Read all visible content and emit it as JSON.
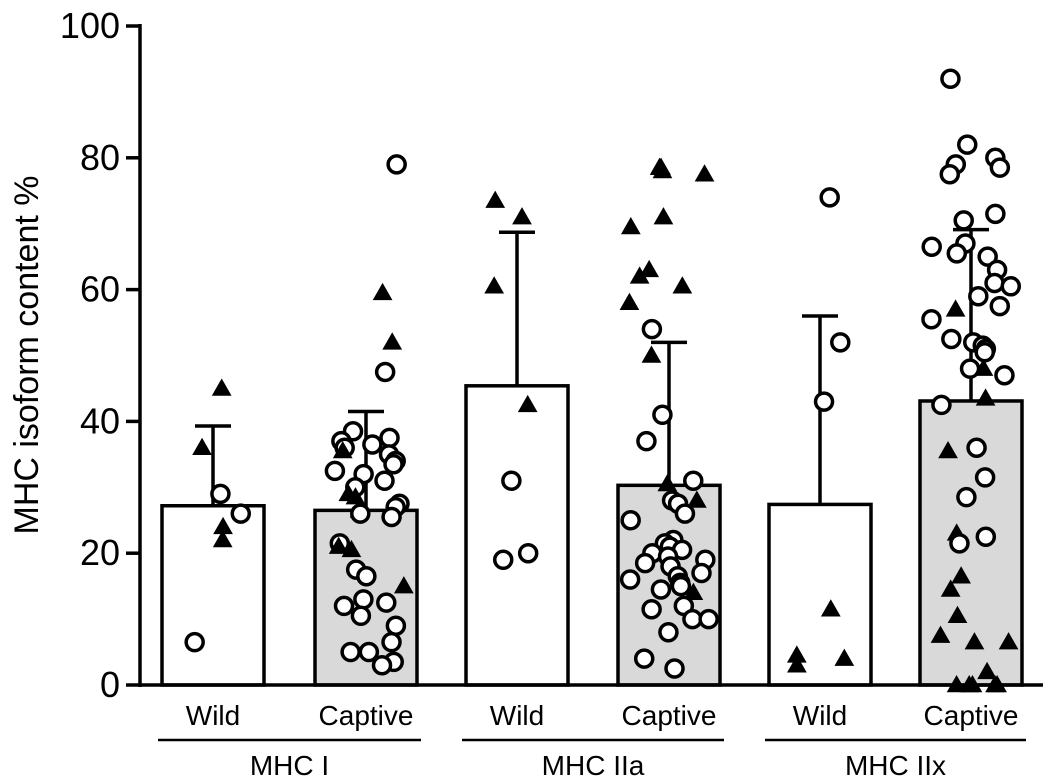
{
  "chart_data": {
    "type": "bar",
    "title": "",
    "ylabel": "MHC isoform content %",
    "xlabel": "",
    "ylim": [
      0,
      100
    ],
    "yticks": [
      0,
      20,
      40,
      60,
      80,
      100
    ],
    "grid": false,
    "error_bars": "mean + SD (upper only)",
    "groups": [
      {
        "label": "MHC I",
        "bars": [
          {
            "label": "Wild",
            "fill": "#ffffff",
            "mean": 27.2,
            "sd": 12.1,
            "points": [
              {
                "marker": "triangle",
                "y": 45
              },
              {
                "marker": "triangle",
                "y": 36
              },
              {
                "marker": "circle",
                "y": 29
              },
              {
                "marker": "circle",
                "y": 26
              },
              {
                "marker": "triangle",
                "y": 24
              },
              {
                "marker": "triangle",
                "y": 22
              },
              {
                "marker": "circle",
                "y": 6.5
              }
            ]
          },
          {
            "label": "Captive",
            "fill": "#d9d9d9",
            "mean": 26.5,
            "sd": 15.0,
            "points": [
              {
                "marker": "circle",
                "y": 79
              },
              {
                "marker": "triangle",
                "y": 59.5
              },
              {
                "marker": "triangle",
                "y": 52
              },
              {
                "marker": "circle",
                "y": 47.5
              },
              {
                "marker": "circle",
                "y": 38.5
              },
              {
                "marker": "circle",
                "y": 37.5
              },
              {
                "marker": "circle",
                "y": 37
              },
              {
                "marker": "circle",
                "y": 36.5
              },
              {
                "marker": "circle",
                "y": 36
              },
              {
                "marker": "triangle",
                "y": 35.5
              },
              {
                "marker": "circle",
                "y": 35
              },
              {
                "marker": "circle",
                "y": 34
              },
              {
                "marker": "circle",
                "y": 33.5
              },
              {
                "marker": "circle",
                "y": 32.5
              },
              {
                "marker": "circle",
                "y": 32
              },
              {
                "marker": "circle",
                "y": 31
              },
              {
                "marker": "circle",
                "y": 30
              },
              {
                "marker": "triangle",
                "y": 29
              },
              {
                "marker": "triangle",
                "y": 28.5
              },
              {
                "marker": "circle",
                "y": 27.5
              },
              {
                "marker": "circle",
                "y": 27
              },
              {
                "marker": "triangle",
                "y": 26.5
              },
              {
                "marker": "circle",
                "y": 26
              },
              {
                "marker": "circle",
                "y": 25.5
              },
              {
                "marker": "circle",
                "y": 21.5
              },
              {
                "marker": "triangle",
                "y": 21
              },
              {
                "marker": "triangle",
                "y": 20.5
              },
              {
                "marker": "circle",
                "y": 17.5
              },
              {
                "marker": "circle",
                "y": 16.5
              },
              {
                "marker": "triangle",
                "y": 15
              },
              {
                "marker": "circle",
                "y": 13
              },
              {
                "marker": "circle",
                "y": 12.5
              },
              {
                "marker": "circle",
                "y": 12
              },
              {
                "marker": "circle",
                "y": 10.5
              },
              {
                "marker": "circle",
                "y": 9
              },
              {
                "marker": "circle",
                "y": 6.5
              },
              {
                "marker": "circle",
                "y": 5
              },
              {
                "marker": "circle",
                "y": 5
              },
              {
                "marker": "circle",
                "y": 3.5
              },
              {
                "marker": "circle",
                "y": 3
              }
            ]
          }
        ]
      },
      {
        "label": "MHC IIa",
        "bars": [
          {
            "label": "Wild",
            "fill": "#ffffff",
            "mean": 45.4,
            "sd": 23.3,
            "points": [
              {
                "marker": "triangle",
                "y": 73.5
              },
              {
                "marker": "triangle",
                "y": 71
              },
              {
                "marker": "triangle",
                "y": 60.5
              },
              {
                "marker": "triangle",
                "y": 42.5
              },
              {
                "marker": "circle",
                "y": 31
              },
              {
                "marker": "circle",
                "y": 20
              },
              {
                "marker": "circle",
                "y": 19
              }
            ]
          },
          {
            "label": "Captive",
            "fill": "#d9d9d9",
            "mean": 30.3,
            "sd": 21.7,
            "points": [
              {
                "marker": "triangle",
                "y": 78.5
              },
              {
                "marker": "triangle",
                "y": 78.5
              },
              {
                "marker": "triangle",
                "y": 78
              },
              {
                "marker": "triangle",
                "y": 77.5
              },
              {
                "marker": "triangle",
                "y": 71
              },
              {
                "marker": "triangle",
                "y": 69.5
              },
              {
                "marker": "triangle",
                "y": 63
              },
              {
                "marker": "triangle",
                "y": 62
              },
              {
                "marker": "triangle",
                "y": 60.5
              },
              {
                "marker": "triangle",
                "y": 58
              },
              {
                "marker": "circle",
                "y": 54
              },
              {
                "marker": "triangle",
                "y": 50
              },
              {
                "marker": "circle",
                "y": 41
              },
              {
                "marker": "circle",
                "y": 37
              },
              {
                "marker": "circle",
                "y": 31
              },
              {
                "marker": "triangle",
                "y": 30.5
              },
              {
                "marker": "circle",
                "y": 28
              },
              {
                "marker": "triangle",
                "y": 28
              },
              {
                "marker": "circle",
                "y": 27.5
              },
              {
                "marker": "circle",
                "y": 26
              },
              {
                "marker": "circle",
                "y": 25
              },
              {
                "marker": "circle",
                "y": 22
              },
              {
                "marker": "circle",
                "y": 21.5
              },
              {
                "marker": "circle",
                "y": 21
              },
              {
                "marker": "circle",
                "y": 20.5
              },
              {
                "marker": "circle",
                "y": 20
              },
              {
                "marker": "circle",
                "y": 19.5
              },
              {
                "marker": "circle",
                "y": 19
              },
              {
                "marker": "circle",
                "y": 18.5
              },
              {
                "marker": "circle",
                "y": 18
              },
              {
                "marker": "circle",
                "y": 17
              },
              {
                "marker": "circle",
                "y": 16.5
              },
              {
                "marker": "circle",
                "y": 16
              },
              {
                "marker": "circle",
                "y": 15.5
              },
              {
                "marker": "circle",
                "y": 15
              },
              {
                "marker": "circle",
                "y": 14.5
              },
              {
                "marker": "triangle",
                "y": 14
              },
              {
                "marker": "circle",
                "y": 12
              },
              {
                "marker": "circle",
                "y": 11.5
              },
              {
                "marker": "circle",
                "y": 10
              },
              {
                "marker": "circle",
                "y": 10
              },
              {
                "marker": "circle",
                "y": 8
              },
              {
                "marker": "circle",
                "y": 4
              },
              {
                "marker": "circle",
                "y": 2.5
              }
            ]
          }
        ]
      },
      {
        "label": "MHC IIx",
        "bars": [
          {
            "label": "Wild",
            "fill": "#ffffff",
            "mean": 27.4,
            "sd": 28.6,
            "points": [
              {
                "marker": "circle",
                "y": 74
              },
              {
                "marker": "circle",
                "y": 52
              },
              {
                "marker": "circle",
                "y": 43
              },
              {
                "marker": "triangle",
                "y": 11.5
              },
              {
                "marker": "triangle",
                "y": 4.5
              },
              {
                "marker": "triangle",
                "y": 4
              },
              {
                "marker": "triangle",
                "y": 3
              }
            ]
          },
          {
            "label": "Captive",
            "fill": "#d9d9d9",
            "mean": 43.1,
            "sd": 26.0,
            "points": [
              {
                "marker": "circle",
                "y": 92
              },
              {
                "marker": "circle",
                "y": 82
              },
              {
                "marker": "circle",
                "y": 80
              },
              {
                "marker": "circle",
                "y": 79
              },
              {
                "marker": "circle",
                "y": 78.5
              },
              {
                "marker": "circle",
                "y": 77.5
              },
              {
                "marker": "circle",
                "y": 71.5
              },
              {
                "marker": "circle",
                "y": 70.5
              },
              {
                "marker": "circle",
                "y": 67
              },
              {
                "marker": "circle",
                "y": 66.5
              },
              {
                "marker": "circle",
                "y": 65.5
              },
              {
                "marker": "circle",
                "y": 65
              },
              {
                "marker": "circle",
                "y": 63
              },
              {
                "marker": "circle",
                "y": 61
              },
              {
                "marker": "circle",
                "y": 60.5
              },
              {
                "marker": "circle",
                "y": 59
              },
              {
                "marker": "circle",
                "y": 57.5
              },
              {
                "marker": "triangle",
                "y": 57
              },
              {
                "marker": "circle",
                "y": 55.5
              },
              {
                "marker": "circle",
                "y": 52.5
              },
              {
                "marker": "circle",
                "y": 52
              },
              {
                "marker": "circle",
                "y": 51.5
              },
              {
                "marker": "circle",
                "y": 51
              },
              {
                "marker": "circle",
                "y": 50.5
              },
              {
                "marker": "circle",
                "y": 48
              },
              {
                "marker": "triangle",
                "y": 48
              },
              {
                "marker": "circle",
                "y": 47
              },
              {
                "marker": "triangle",
                "y": 43.5
              },
              {
                "marker": "circle",
                "y": 42.5
              },
              {
                "marker": "circle",
                "y": 36
              },
              {
                "marker": "triangle",
                "y": 35.5
              },
              {
                "marker": "circle",
                "y": 31.5
              },
              {
                "marker": "circle",
                "y": 28.5
              },
              {
                "marker": "triangle",
                "y": 23
              },
              {
                "marker": "circle",
                "y": 22.5
              },
              {
                "marker": "circle",
                "y": 21.5
              },
              {
                "marker": "triangle",
                "y": 16.5
              },
              {
                "marker": "triangle",
                "y": 14.5
              },
              {
                "marker": "triangle",
                "y": 10.5
              },
              {
                "marker": "triangle",
                "y": 7.5
              },
              {
                "marker": "triangle",
                "y": 6.5
              },
              {
                "marker": "triangle",
                "y": 6.5
              },
              {
                "marker": "triangle",
                "y": 2
              },
              {
                "marker": "triangle",
                "y": 0
              },
              {
                "marker": "triangle",
                "y": 0
              },
              {
                "marker": "triangle",
                "y": 0
              },
              {
                "marker": "triangle",
                "y": 0
              },
              {
                "marker": "triangle",
                "y": 0
              }
            ]
          }
        ]
      }
    ]
  }
}
